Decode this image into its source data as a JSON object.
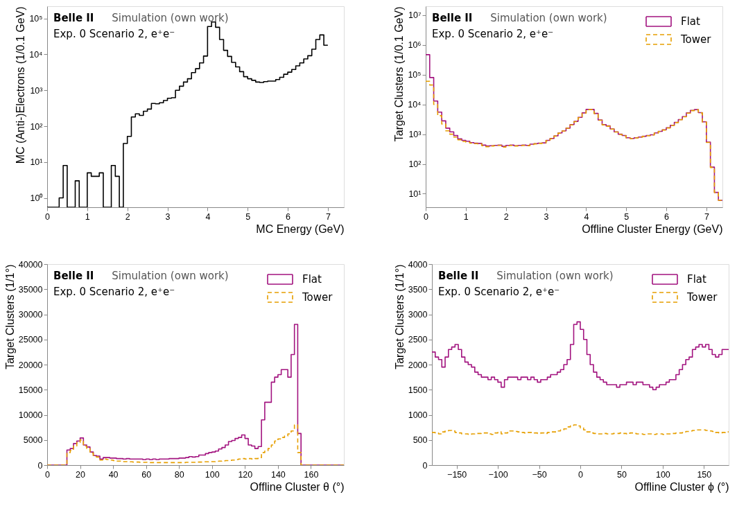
{
  "chart_data": [
    {
      "type": "histogram",
      "xlabel": "MC Energy (GeV)",
      "ylabel": "MC (Anti-)Electrons (1/0.1 GeV)",
      "annotations": [
        "Belle II",
        "Simulation (own work)",
        "Exp. 0 Scenario 2, e⁺e⁻"
      ],
      "log": true,
      "grid": false,
      "xlim": [
        0,
        7.4
      ],
      "ylim": [
        0.55,
        220000
      ],
      "xticks": [
        0,
        1,
        2,
        3,
        4,
        5,
        6,
        7
      ],
      "yticks": [
        {
          "value": 1,
          "label": "10⁰"
        },
        {
          "value": 10,
          "label": "10¹"
        },
        {
          "value": 100,
          "label": "10²"
        },
        {
          "value": 1000,
          "label": "10³"
        },
        {
          "value": 10000,
          "label": "10⁴"
        },
        {
          "value": 100000,
          "label": "10⁵"
        }
      ],
      "bins": [
        0,
        0.1,
        0.2,
        0.3,
        0.4,
        0.5,
        0.6,
        0.7,
        0.8,
        0.9,
        1.0,
        1.1,
        1.2,
        1.3,
        1.4,
        1.5,
        1.6,
        1.7,
        1.8,
        1.9,
        2.0,
        2.1,
        2.2,
        2.3,
        2.4,
        2.5,
        2.6,
        2.7,
        2.8,
        2.9,
        3.0,
        3.1,
        3.2,
        3.3,
        3.4,
        3.5,
        3.6,
        3.7,
        3.8,
        3.9,
        4.0,
        4.1,
        4.2,
        4.3,
        4.4,
        4.5,
        4.6,
        4.7,
        4.8,
        4.9,
        5.0,
        5.1,
        5.2,
        5.3,
        5.4,
        5.5,
        5.6,
        5.7,
        5.8,
        5.9,
        6.0,
        6.1,
        6.2,
        6.3,
        6.4,
        6.5,
        6.6,
        6.7,
        6.8,
        6.9,
        7.0
      ],
      "color": "#000000",
      "values": [
        null,
        null,
        null,
        1,
        8,
        null,
        null,
        3,
        null,
        null,
        5,
        4,
        4,
        5,
        null,
        null,
        8,
        4,
        null,
        33,
        52,
        180,
        220,
        200,
        260,
        300,
        430,
        420,
        450,
        520,
        600,
        620,
        1000,
        1300,
        1700,
        2100,
        3100,
        4000,
        5800,
        9000,
        60000,
        80000,
        57000,
        26000,
        13000,
        8800,
        6000,
        4500,
        3300,
        2400,
        2100,
        1900,
        1700,
        1650,
        1750,
        1800,
        1800,
        2000,
        2300,
        2800,
        3200,
        3800,
        4800,
        5800,
        7500,
        9200,
        14000,
        26000,
        35000,
        18000
      ]
    },
    {
      "type": "histogram",
      "xlabel": "Offline Cluster Energy (GeV)",
      "ylabel": "Target Clusters (1/0.1 GeV)",
      "annotations": [
        "Belle II",
        "Simulation (own work)",
        "Exp. 0 Scenario 2, e⁺e⁻"
      ],
      "log": true,
      "grid": false,
      "legend": "top right",
      "xlim": [
        0,
        7.4
      ],
      "ylim": [
        3.5,
        20000000
      ],
      "xticks": [
        0,
        1,
        2,
        3,
        4,
        5,
        6,
        7
      ],
      "yticks": [
        {
          "value": 10,
          "label": "10¹"
        },
        {
          "value": 100,
          "label": "10²"
        },
        {
          "value": 1000,
          "label": "10³"
        },
        {
          "value": 10000,
          "label": "10⁴"
        },
        {
          "value": 100000,
          "label": "10⁵"
        },
        {
          "value": 1000000,
          "label": "10⁶"
        },
        {
          "value": 10000000,
          "label": "10⁷"
        }
      ],
      "bins": [
        0,
        0.1,
        0.2,
        0.3,
        0.4,
        0.5,
        0.6,
        0.7,
        0.8,
        0.9,
        1.0,
        1.1,
        1.2,
        1.3,
        1.4,
        1.5,
        1.6,
        1.7,
        1.8,
        1.9,
        2.0,
        2.1,
        2.2,
        2.3,
        2.4,
        2.5,
        2.6,
        2.7,
        2.8,
        2.9,
        3.0,
        3.1,
        3.2,
        3.3,
        3.4,
        3.5,
        3.6,
        3.7,
        3.8,
        3.9,
        4.0,
        4.1,
        4.2,
        4.3,
        4.4,
        4.5,
        4.6,
        4.7,
        4.8,
        4.9,
        5.0,
        5.1,
        5.2,
        5.3,
        5.4,
        5.5,
        5.6,
        5.7,
        5.8,
        5.9,
        6.0,
        6.1,
        6.2,
        6.3,
        6.4,
        6.5,
        6.6,
        6.7,
        6.8,
        6.9,
        7.0,
        7.1,
        7.2,
        7.3,
        7.4
      ],
      "series": [
        {
          "name": "Flat",
          "color": "#a2137f",
          "line_style": "solid",
          "values": [
            470000,
            80000,
            13000,
            5500,
            2800,
            1600,
            1200,
            900,
            700,
            620,
            580,
            520,
            500,
            490,
            430,
            400,
            410,
            420,
            430,
            390,
            420,
            430,
            410,
            420,
            430,
            420,
            460,
            480,
            500,
            510,
            620,
            720,
            880,
            1100,
            1300,
            1600,
            2100,
            2700,
            3700,
            5200,
            6800,
            6800,
            5000,
            3000,
            2100,
            1900,
            1500,
            1200,
            1000,
            900,
            760,
            720,
            760,
            800,
            850,
            900,
            950,
            1100,
            1250,
            1400,
            1650,
            2000,
            2500,
            3100,
            3900,
            5200,
            6300,
            6700,
            5300,
            2600,
            540,
            78,
            11,
            6
          ]
        },
        {
          "name": "Tower",
          "color": "#e69f00",
          "line_style": "dashed",
          "values": [
            60000,
            45000,
            10000,
            4200,
            2200,
            1300,
            1000,
            800,
            650,
            570,
            540,
            500,
            480,
            470,
            410,
            380,
            400,
            410,
            420,
            370,
            410,
            420,
            400,
            410,
            420,
            410,
            450,
            470,
            490,
            500,
            600,
            700,
            860,
            1080,
            1280,
            1580,
            2050,
            2650,
            3600,
            5100,
            6700,
            6700,
            4900,
            2950,
            2050,
            1850,
            1480,
            1180,
            980,
            880,
            740,
            710,
            750,
            790,
            840,
            890,
            940,
            1080,
            1230,
            1380,
            1620,
            1970,
            2450,
            3050,
            3850,
            5100,
            6200,
            6600,
            5200,
            2550,
            530,
            76,
            11,
            6
          ]
        }
      ]
    },
    {
      "type": "histogram",
      "xlabel": "Offline Cluster θ (°)",
      "ylabel": "Target Clusters (1/1°)",
      "annotations": [
        "Belle II",
        "Simulation (own work)",
        "Exp. 0 Scenario 2, e⁺e⁻"
      ],
      "grid": false,
      "legend": "top right",
      "xlim": [
        0,
        180
      ],
      "ylim": [
        0,
        40000
      ],
      "xticks": [
        0,
        20,
        40,
        60,
        80,
        100,
        120,
        140,
        160
      ],
      "yticks": [
        0,
        5000,
        10000,
        15000,
        20000,
        25000,
        30000,
        35000,
        40000
      ],
      "bins": [
        0,
        2,
        4,
        6,
        8,
        10,
        12,
        14,
        16,
        18,
        20,
        22,
        24,
        26,
        28,
        30,
        32,
        34,
        36,
        38,
        40,
        42,
        44,
        46,
        48,
        50,
        52,
        54,
        56,
        58,
        60,
        62,
        64,
        66,
        68,
        70,
        72,
        74,
        76,
        78,
        80,
        82,
        84,
        86,
        88,
        90,
        92,
        94,
        96,
        98,
        100,
        102,
        104,
        106,
        108,
        110,
        112,
        114,
        116,
        118,
        120,
        122,
        124,
        126,
        128,
        130,
        132,
        134,
        136,
        138,
        140,
        142,
        144,
        146,
        148,
        150,
        152,
        154,
        156,
        158,
        160,
        162,
        164,
        166,
        168,
        170,
        172,
        174,
        176,
        178,
        180
      ],
      "series": [
        {
          "name": "Flat",
          "color": "#a2137f",
          "line_style": "solid",
          "values": [
            0,
            0,
            0,
            0,
            0,
            0,
            3000,
            3300,
            4300,
            4800,
            5400,
            4000,
            3600,
            2600,
            1900,
            1800,
            1200,
            1500,
            1500,
            1400,
            1400,
            1300,
            1300,
            1200,
            1300,
            1200,
            1200,
            1200,
            1200,
            1100,
            1200,
            1100,
            1200,
            1100,
            1200,
            1200,
            1200,
            1300,
            1300,
            1300,
            1400,
            1400,
            1500,
            1700,
            1600,
            1700,
            2000,
            2000,
            2300,
            2500,
            2600,
            2800,
            3200,
            3500,
            4000,
            4700,
            4900,
            5300,
            5500,
            6000,
            5300,
            4000,
            3800,
            3300,
            3700,
            9000,
            12500,
            12500,
            16500,
            17500,
            18000,
            19000,
            19000,
            17500,
            22000,
            28000,
            6300,
            0,
            0,
            0,
            0,
            0,
            0,
            0,
            0,
            0,
            0,
            0,
            0,
            0
          ]
        },
        {
          "name": "Tower",
          "color": "#e69f00",
          "line_style": "dashed",
          "values": [
            0,
            0,
            0,
            0,
            0,
            0,
            2500,
            2900,
            3800,
            4500,
            5000,
            3800,
            3300,
            2400,
            1700,
            1600,
            1000,
            1200,
            1100,
            1000,
            900,
            800,
            800,
            700,
            700,
            650,
            600,
            600,
            550,
            550,
            550,
            500,
            500,
            500,
            500,
            500,
            500,
            500,
            500,
            500,
            500,
            500,
            550,
            550,
            550,
            600,
            600,
            650,
            650,
            700,
            700,
            750,
            800,
            850,
            900,
            950,
            1000,
            1100,
            1200,
            1300,
            1200,
            1300,
            1200,
            1300,
            1500,
            2500,
            2800,
            3300,
            4000,
            4800,
            5200,
            5500,
            5800,
            6200,
            6800,
            8000,
            2500,
            0,
            0,
            0,
            0,
            0,
            0,
            0,
            0,
            0,
            0,
            0,
            0,
            0
          ]
        }
      ]
    },
    {
      "type": "histogram",
      "xlabel": "Offline Cluster ϕ (°)",
      "ylabel": "Target Clusters (1/1°)",
      "annotations": [
        "Belle II",
        "Simulation (own work)",
        "Exp. 0 Scenario 2, e⁺e⁻"
      ],
      "grid": false,
      "legend": "top right",
      "xlim": [
        -180,
        180
      ],
      "ylim": [
        0,
        4000
      ],
      "xticks": [
        {
          "value": -150,
          "label": "−150"
        },
        {
          "value": -100,
          "label": "−100"
        },
        {
          "value": -50,
          "label": "−50"
        },
        0,
        50,
        100,
        150
      ],
      "yticks": [
        0,
        500,
        1000,
        1500,
        2000,
        2500,
        3000,
        3500,
        4000
      ],
      "bins": [
        -180,
        -176,
        -172,
        -168,
        -164,
        -160,
        -156,
        -152,
        -148,
        -144,
        -140,
        -136,
        -132,
        -128,
        -124,
        -120,
        -116,
        -112,
        -108,
        -104,
        -100,
        -96,
        -92,
        -88,
        -84,
        -80,
        -76,
        -72,
        -68,
        -64,
        -60,
        -56,
        -52,
        -48,
        -44,
        -40,
        -36,
        -32,
        -28,
        -24,
        -20,
        -16,
        -12,
        -8,
        -4,
        0,
        4,
        8,
        12,
        16,
        20,
        24,
        28,
        32,
        36,
        40,
        44,
        48,
        52,
        56,
        60,
        64,
        68,
        72,
        76,
        80,
        84,
        88,
        92,
        96,
        100,
        104,
        108,
        112,
        116,
        120,
        124,
        128,
        132,
        136,
        140,
        144,
        148,
        152,
        156,
        160,
        164,
        168,
        172,
        176,
        180
      ],
      "series": [
        {
          "name": "Flat",
          "color": "#a2137f",
          "line_style": "solid",
          "values": [
            2250,
            2150,
            2100,
            1950,
            2150,
            2300,
            2350,
            2400,
            2300,
            2150,
            2050,
            2000,
            1950,
            1850,
            1800,
            1750,
            1750,
            1700,
            1750,
            1700,
            1650,
            1550,
            1700,
            1750,
            1750,
            1750,
            1700,
            1750,
            1750,
            1700,
            1750,
            1700,
            1650,
            1700,
            1700,
            1750,
            1800,
            1800,
            1850,
            1900,
            2000,
            2100,
            2400,
            2800,
            2850,
            2700,
            2500,
            2200,
            2000,
            1850,
            1750,
            1700,
            1650,
            1600,
            1600,
            1600,
            1550,
            1600,
            1600,
            1650,
            1650,
            1600,
            1650,
            1650,
            1600,
            1600,
            1550,
            1500,
            1550,
            1600,
            1600,
            1650,
            1700,
            1700,
            1800,
            1900,
            2000,
            2100,
            2150,
            2300,
            2350,
            2400,
            2350,
            2400,
            2300,
            2200,
            2150,
            2200,
            2300,
            2300
          ]
        },
        {
          "name": "Tower",
          "color": "#e69f00",
          "line_style": "dashed",
          "values": [
            650,
            640,
            620,
            660,
            680,
            690,
            680,
            650,
            640,
            620,
            620,
            610,
            620,
            630,
            630,
            640,
            640,
            620,
            610,
            640,
            660,
            620,
            640,
            680,
            680,
            670,
            660,
            650,
            640,
            650,
            650,
            640,
            630,
            640,
            630,
            650,
            660,
            660,
            680,
            700,
            720,
            760,
            790,
            800,
            780,
            740,
            700,
            660,
            640,
            630,
            620,
            620,
            630,
            620,
            620,
            630,
            630,
            640,
            630,
            620,
            640,
            630,
            620,
            620,
            610,
            620,
            620,
            610,
            620,
            620,
            610,
            620,
            620,
            630,
            640,
            640,
            660,
            670,
            680,
            690,
            700,
            700,
            700,
            690,
            680,
            670,
            650,
            640,
            650,
            660
          ]
        }
      ]
    }
  ]
}
